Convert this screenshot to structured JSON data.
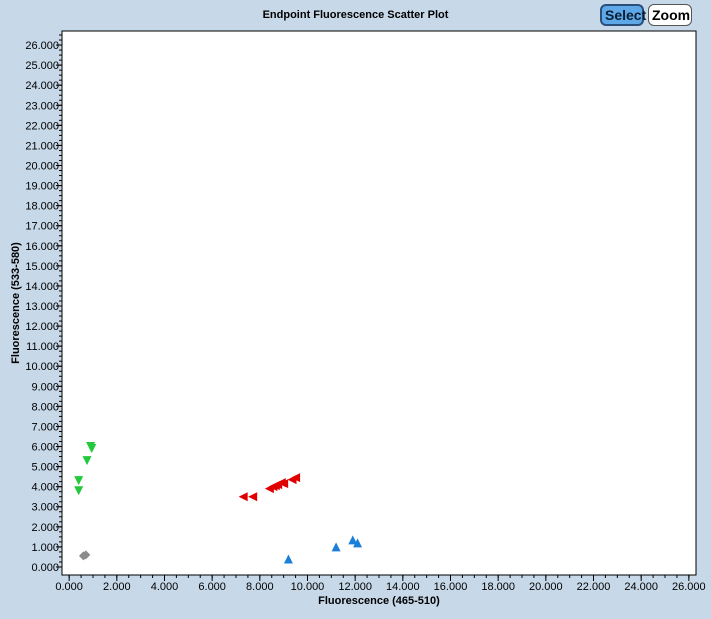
{
  "toolbar": {
    "select_label": "Select",
    "zoom_label": "Zoom"
  },
  "chart_data": {
    "type": "scatter",
    "title": "Endpoint Fluorescence Scatter Plot",
    "xlabel": "Fluorescence (465-510)",
    "ylabel": "Fluorescence (533-580)",
    "xlim": [
      -0.3,
      26.3
    ],
    "ylim": [
      -0.4,
      26.7
    ],
    "x_ticks": [
      0,
      2,
      4,
      6,
      8,
      10,
      12,
      14,
      16,
      18,
      20,
      22,
      24,
      26
    ],
    "x_tick_labels": [
      "0.000",
      "2.000",
      "4.000",
      "6.000",
      "8.000",
      "10.000",
      "12.000",
      "14.000",
      "16.000",
      "18.000",
      "20.000",
      "22.000",
      "24.000",
      "26.000"
    ],
    "y_ticks": [
      0,
      1,
      2,
      3,
      4,
      5,
      6,
      7,
      8,
      9,
      10,
      11,
      12,
      13,
      14,
      15,
      16,
      17,
      18,
      19,
      20,
      21,
      22,
      23,
      24,
      25,
      26
    ],
    "y_tick_labels": [
      "0.000",
      "1.000",
      "2.000",
      "3.000",
      "4.000",
      "5.000",
      "6.000",
      "7.000",
      "8.000",
      "9.000",
      "10.000",
      "11.000",
      "12.000",
      "13.000",
      "14.000",
      "15.000",
      "16.000",
      "17.000",
      "18.000",
      "19.000",
      "20.000",
      "21.000",
      "22.000",
      "23.000",
      "24.000",
      "25.000",
      "26.000"
    ],
    "grid": false,
    "series": [
      {
        "marker": "triangle-down",
        "color": "#22c93b",
        "points": [
          [
            0.9,
            6.0
          ],
          [
            0.95,
            5.9
          ],
          [
            0.75,
            5.3
          ],
          [
            0.4,
            4.3
          ],
          [
            0.4,
            3.8
          ]
        ]
      },
      {
        "marker": "triangle-left",
        "color": "#e00000",
        "points": [
          [
            7.3,
            3.5
          ],
          [
            7.7,
            3.5
          ],
          [
            8.4,
            3.9
          ],
          [
            8.55,
            4.0
          ],
          [
            8.65,
            4.05
          ],
          [
            8.75,
            4.1
          ],
          [
            8.9,
            4.2
          ],
          [
            9.0,
            4.15
          ],
          [
            9.35,
            4.35
          ],
          [
            9.5,
            4.45
          ]
        ]
      },
      {
        "marker": "triangle-up",
        "color": "#1a7fd9",
        "points": [
          [
            9.2,
            0.4
          ],
          [
            11.2,
            1.0
          ],
          [
            11.9,
            1.35
          ],
          [
            12.1,
            1.2
          ]
        ]
      },
      {
        "marker": "diamond",
        "color": "#8c8c8c",
        "points": [
          [
            0.6,
            0.55
          ],
          [
            0.7,
            0.6
          ]
        ]
      }
    ]
  }
}
